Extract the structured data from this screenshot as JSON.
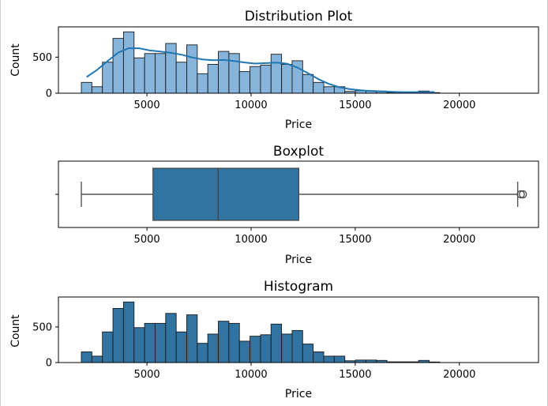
{
  "chart_data": [
    {
      "type": "histogram",
      "title": "Distribution Plot",
      "xlabel": "Price",
      "ylabel": "Count",
      "xlim": [
        750,
        23800
      ],
      "ylim": [
        0,
        920
      ],
      "xticks": [
        5000,
        10000,
        15000,
        20000
      ],
      "yticks": [
        0,
        500
      ],
      "bin_start": 1850,
      "bin_width": 506,
      "values": [
        150,
        90,
        430,
        760,
        850,
        490,
        550,
        550,
        690,
        430,
        670,
        270,
        400,
        580,
        550,
        300,
        370,
        390,
        540,
        400,
        450,
        260,
        150,
        90,
        90,
        25,
        35,
        35,
        30,
        10,
        10,
        10,
        30,
        8
      ],
      "kde_color": "#1f77b4",
      "bar_color": "#86b4da"
    },
    {
      "type": "boxplot",
      "title": "Boxplot",
      "xlabel": "Price",
      "xlim": [
        750,
        23800
      ],
      "xticks": [
        5000,
        10000,
        15000,
        20000
      ],
      "whisker_low": 1850,
      "q1": 5290,
      "median": 8420,
      "q3": 12290,
      "whisker_high": 22800,
      "outliers": [
        22950,
        23050
      ],
      "box_color": "#3274a1"
    },
    {
      "type": "histogram",
      "title": "Histogram",
      "xlabel": "Price",
      "ylabel": "Count",
      "xlim": [
        750,
        23800
      ],
      "ylim": [
        0,
        920
      ],
      "xticks": [
        5000,
        10000,
        15000,
        20000
      ],
      "yticks": [
        0,
        500
      ],
      "bin_start": 1850,
      "bin_width": 506,
      "values": [
        150,
        90,
        430,
        760,
        850,
        490,
        550,
        550,
        690,
        430,
        670,
        270,
        400,
        580,
        550,
        300,
        370,
        390,
        540,
        400,
        450,
        260,
        150,
        90,
        90,
        25,
        35,
        35,
        30,
        10,
        10,
        10,
        30,
        8
      ],
      "bar_color": "#3274a1"
    }
  ]
}
